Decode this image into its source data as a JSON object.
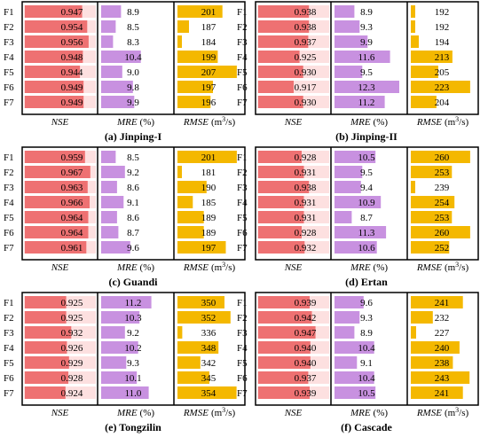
{
  "colors": {
    "nse_bar": "#ee7172",
    "nse_cell": "#fde0e0",
    "mre_bar": "#c891e0",
    "rmse_bar": "#f4b800",
    "border": "#000000"
  },
  "row_labels": [
    "F1",
    "F2",
    "F3",
    "F4",
    "F5",
    "F6",
    "F7"
  ],
  "chart_data": [
    {
      "type": "bar",
      "title": "(a) Jinping-I",
      "categories": [
        "F1",
        "F2",
        "F3",
        "F4",
        "F5",
        "F6",
        "F7"
      ],
      "series": [
        {
          "name": "NSE",
          "label": "NSE",
          "values": [
            0.947,
            0.954,
            0.956,
            0.948,
            0.944,
            0.949,
            0.949
          ],
          "display": [
            "0.947",
            "0.954",
            "0.956",
            "0.948",
            "0.944",
            "0.949",
            "0.949"
          ]
        },
        {
          "name": "MRE",
          "label": "MRE",
          "unit": "(%)",
          "values": [
            8.9,
            8.5,
            8.3,
            10.4,
            9.0,
            9.8,
            9.9
          ],
          "display": [
            "8.9",
            "8.5",
            "8.3",
            "10.4",
            "9.0",
            "9.8",
            "9.9"
          ]
        },
        {
          "name": "RMSE",
          "label": "RMSE",
          "unit_pre": "(m",
          "unit_sup": "3",
          "unit_post": "/s)",
          "values": [
            201,
            187,
            184,
            199,
            207,
            197,
            196
          ],
          "display": [
            "201",
            "187",
            "184",
            "199",
            "207",
            "197",
            "196"
          ]
        }
      ]
    },
    {
      "type": "bar",
      "title": "(b) Jinping-II",
      "categories": [
        "F1",
        "F2",
        "F3",
        "F4",
        "F5",
        "F6",
        "F7"
      ],
      "series": [
        {
          "name": "NSE",
          "label": "NSE",
          "values": [
            0.938,
            0.938,
            0.937,
            0.925,
            0.93,
            0.917,
            0.93
          ],
          "display": [
            "0.938",
            "0.938",
            "0.937",
            "0.925",
            "0.930",
            "0.917",
            "0.930"
          ]
        },
        {
          "name": "MRE",
          "label": "MRE",
          "unit": "(%)",
          "values": [
            8.9,
            9.3,
            9.9,
            11.6,
            9.5,
            12.3,
            11.2
          ],
          "display": [
            "8.9",
            "9.3",
            "9.9",
            "11.6",
            "9.5",
            "12.3",
            "11.2"
          ]
        },
        {
          "name": "RMSE",
          "label": "RMSE",
          "unit_pre": "(m",
          "unit_sup": "3",
          "unit_post": "/s)",
          "values": [
            192,
            192,
            194,
            213,
            205,
            223,
            204
          ],
          "display": [
            "192",
            "192",
            "194",
            "213",
            "205",
            "223",
            "204"
          ]
        }
      ]
    },
    {
      "type": "bar",
      "title": "(c) Guandi",
      "categories": [
        "F1",
        "F2",
        "F3",
        "F4",
        "F5",
        "F6",
        "F7"
      ],
      "series": [
        {
          "name": "NSE",
          "label": "NSE",
          "values": [
            0.959,
            0.967,
            0.963,
            0.966,
            0.964,
            0.964,
            0.961
          ],
          "display": [
            "0.959",
            "0.967",
            "0.963",
            "0.966",
            "0.964",
            "0.964",
            "0.961"
          ]
        },
        {
          "name": "MRE",
          "label": "MRE",
          "unit": "(%)",
          "values": [
            8.5,
            9.2,
            8.6,
            9.1,
            8.6,
            8.7,
            9.6
          ],
          "display": [
            "8.5",
            "9.2",
            "8.6",
            "9.1",
            "8.6",
            "8.7",
            "9.6"
          ]
        },
        {
          "name": "RMSE",
          "label": "RMSE",
          "unit_pre": "(m",
          "unit_sup": "3",
          "unit_post": "/s)",
          "values": [
            201,
            181,
            190,
            185,
            189,
            189,
            197
          ],
          "display": [
            "201",
            "181",
            "190",
            "185",
            "189",
            "189",
            "197"
          ]
        }
      ]
    },
    {
      "type": "bar",
      "title": "(d) Ertan",
      "categories": [
        "F1",
        "F2",
        "F3",
        "F4",
        "F5",
        "F6",
        "F7"
      ],
      "series": [
        {
          "name": "NSE",
          "label": "NSE",
          "values": [
            0.928,
            0.931,
            0.938,
            0.931,
            0.931,
            0.928,
            0.932
          ],
          "display": [
            "0.928",
            "0.931",
            "0.938",
            "0.931",
            "0.931",
            "0.928",
            "0.932"
          ]
        },
        {
          "name": "MRE",
          "label": "MRE",
          "unit": "(%)",
          "values": [
            10.5,
            9.5,
            9.4,
            10.9,
            8.7,
            11.3,
            10.6
          ],
          "display": [
            "10.5",
            "9.5",
            "9.4",
            "10.9",
            "8.7",
            "11.3",
            "10.6"
          ]
        },
        {
          "name": "RMSE",
          "label": "RMSE",
          "unit_pre": "(m",
          "unit_sup": "3",
          "unit_post": "/s)",
          "values": [
            260,
            253,
            239,
            254,
            253,
            260,
            252
          ],
          "display": [
            "260",
            "253",
            "239",
            "254",
            "253",
            "260",
            "252"
          ]
        }
      ]
    },
    {
      "type": "bar",
      "title": "(e) Tongzilin",
      "categories": [
        "F1",
        "F2",
        "F3",
        "F4",
        "F5",
        "F6",
        "F7"
      ],
      "series": [
        {
          "name": "NSE",
          "label": "NSE",
          "values": [
            0.925,
            0.925,
            0.932,
            0.926,
            0.929,
            0.928,
            0.924
          ],
          "display": [
            "0.925",
            "0.925",
            "0.932",
            "0.926",
            "0.929",
            "0.928",
            "0.924"
          ]
        },
        {
          "name": "MRE",
          "label": "MRE",
          "unit": "(%)",
          "values": [
            11.2,
            10.3,
            9.2,
            10.2,
            9.3,
            10.1,
            11.0
          ],
          "display": [
            "11.2",
            "10.3",
            "9.2",
            "10.2",
            "9.3",
            "10.1",
            "11.0"
          ]
        },
        {
          "name": "RMSE",
          "label": "RMSE",
          "unit_pre": "(m",
          "unit_sup": "3",
          "unit_post": "/s)",
          "values": [
            350,
            352,
            336,
            348,
            342,
            345,
            354
          ],
          "display": [
            "350",
            "352",
            "336",
            "348",
            "342",
            "345",
            "354"
          ]
        }
      ]
    },
    {
      "type": "bar",
      "title": "(f) Cascade",
      "categories": [
        "F1",
        "F2",
        "F3",
        "F4",
        "F5",
        "F6",
        "F7"
      ],
      "series": [
        {
          "name": "NSE",
          "label": "NSE",
          "values": [
            0.939,
            0.942,
            0.947,
            0.94,
            0.94,
            0.937,
            0.939
          ],
          "display": [
            "0.939",
            "0.942",
            "0.947",
            "0.940",
            "0.940",
            "0.937",
            "0.939"
          ]
        },
        {
          "name": "MRE",
          "label": "MRE",
          "unit": "(%)",
          "values": [
            9.6,
            9.3,
            8.9,
            10.4,
            9.1,
            10.4,
            10.5
          ],
          "display": [
            "9.6",
            "9.3",
            "8.9",
            "10.4",
            "9.1",
            "10.4",
            "10.5"
          ]
        },
        {
          "name": "RMSE",
          "label": "RMSE",
          "unit_pre": "(m",
          "unit_sup": "3",
          "unit_post": "/s)",
          "values": [
            241,
            232,
            227,
            240,
            238,
            243,
            241
          ],
          "display": [
            "241",
            "232",
            "227",
            "240",
            "238",
            "243",
            "241"
          ]
        }
      ]
    }
  ]
}
